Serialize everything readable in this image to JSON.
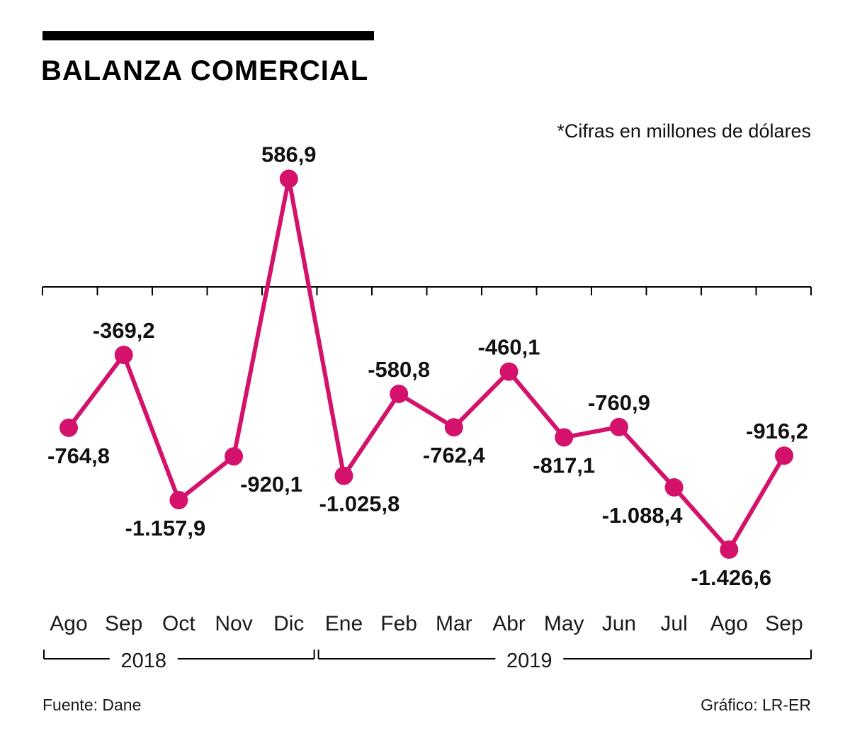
{
  "header": {
    "title": "BALANZA COMERCIAL",
    "note": "*Cifras en millones de dólares"
  },
  "footer": {
    "source": "Fuente: Dane",
    "credit": "Gráfico: LR-ER"
  },
  "chart_data": {
    "type": "line",
    "title": "BALANZA COMERCIAL",
    "unit_note": "*Cifras en millones de dólares",
    "categories": [
      "Ago",
      "Sep",
      "Oct",
      "Nov",
      "Dic",
      "Ene",
      "Feb",
      "Mar",
      "Abr",
      "May",
      "Jun",
      "Jul",
      "Ago",
      "Sep"
    ],
    "values": [
      -764.8,
      -369.2,
      -1157.9,
      -920.1,
      586.9,
      -1025.8,
      -580.8,
      -762.4,
      -460.1,
      -817.1,
      -760.9,
      -1088.4,
      -1426.6,
      -916.2
    ],
    "value_labels": [
      "-764,8",
      "-369,2",
      "-1.157,9",
      "-920,1",
      "586,9",
      "-1.025,8",
      "-580,8",
      "-762,4",
      "-460,1",
      "-817,1",
      "-760,9",
      "-1.088,4",
      "-1.426,6",
      "-916,2"
    ],
    "label_layout": [
      {
        "pos": "below",
        "dx": 14
      },
      {
        "pos": "above",
        "dx": 0
      },
      {
        "pos": "below",
        "dx": -19
      },
      {
        "pos": "below",
        "dx": 53
      },
      {
        "pos": "above",
        "dx": 0
      },
      {
        "pos": "below",
        "dx": 22
      },
      {
        "pos": "above",
        "dx": 0
      },
      {
        "pos": "below",
        "dx": 0
      },
      {
        "pos": "above",
        "dx": 0
      },
      {
        "pos": "below",
        "dx": 0
      },
      {
        "pos": "above",
        "dx": 0
      },
      {
        "pos": "below",
        "dx": -45
      },
      {
        "pos": "below",
        "dx": 3
      },
      {
        "pos": "above",
        "dx": -10
      }
    ],
    "year_groups": [
      {
        "label": "2018",
        "from": 0,
        "to": 4
      },
      {
        "label": "2019",
        "from": 5,
        "to": 13
      }
    ],
    "line_color": "#d4126b",
    "axis_color": "#000000",
    "ylim": [
      -1500,
      700
    ],
    "zero_line": true,
    "grid": false,
    "legend": "none"
  }
}
